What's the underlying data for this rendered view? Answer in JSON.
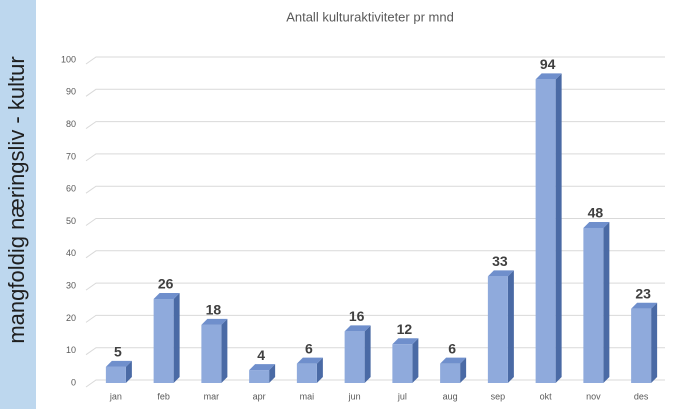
{
  "side_label": "mangfoldig næringsliv - kultur",
  "chart_data": {
    "type": "bar",
    "title": "Antall kulturaktiviteter pr mnd",
    "categories": [
      "jan",
      "feb",
      "mar",
      "apr",
      "mai",
      "jun",
      "jul",
      "aug",
      "sep",
      "okt",
      "nov",
      "des"
    ],
    "values": [
      5,
      26,
      18,
      4,
      6,
      16,
      12,
      6,
      33,
      94,
      48,
      23
    ],
    "color": "#8faadc",
    "ylim": [
      0,
      100
    ],
    "yticks": [
      0,
      10,
      20,
      30,
      40,
      50,
      60,
      70,
      80,
      90,
      100
    ],
    "grid": true
  }
}
